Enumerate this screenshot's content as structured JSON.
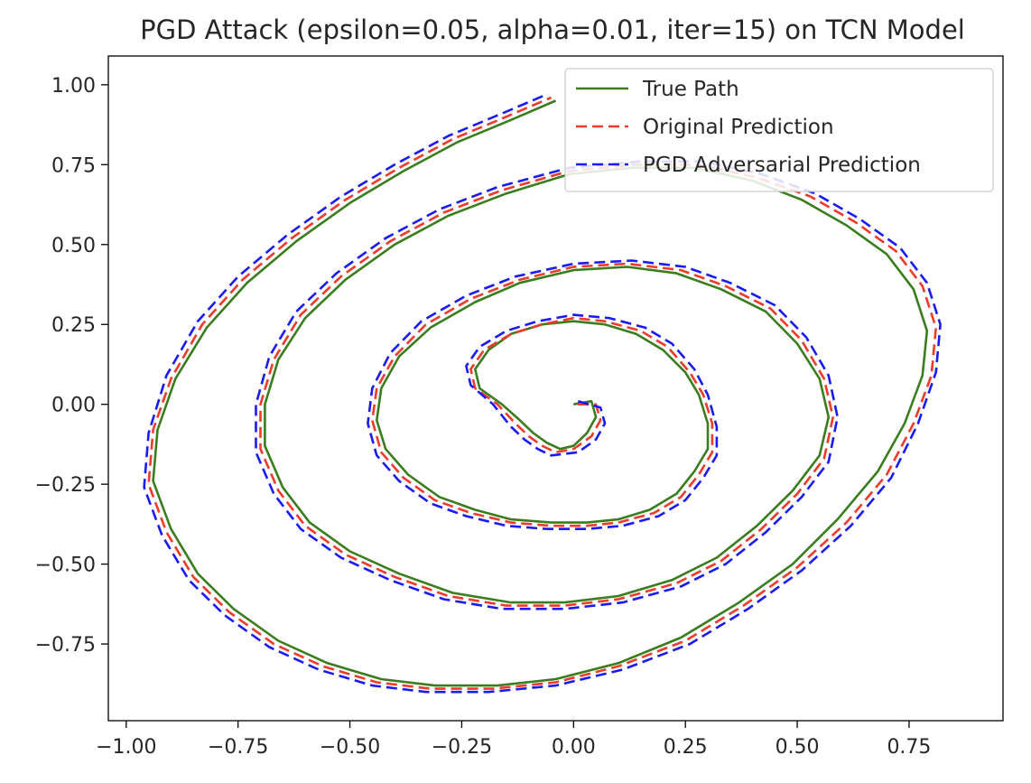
{
  "chart_data": {
    "type": "line",
    "title": "PGD Attack (epsilon=0.05, alpha=0.01, iter=15) on TCN Model",
    "xlabel": "",
    "ylabel": "",
    "xlim": [
      -1.04,
      0.96
    ],
    "ylim": [
      -0.99,
      1.09
    ],
    "x_ticks": [
      -1.0,
      -0.75,
      -0.5,
      -0.25,
      0.0,
      0.25,
      0.5,
      0.75
    ],
    "x_tick_labels": [
      "−1.00",
      "−0.75",
      "−0.50",
      "−0.25",
      "0.00",
      "0.25",
      "0.50",
      "0.75"
    ],
    "y_ticks": [
      1.0,
      0.75,
      0.5,
      0.25,
      0.0,
      -0.25,
      -0.5,
      -0.75
    ],
    "y_tick_labels": [
      "1.00",
      "0.75",
      "0.50",
      "0.25",
      "0.00",
      "−0.25",
      "−0.50",
      "−0.75"
    ],
    "grid": false,
    "legend_position": "top-right",
    "series": [
      {
        "name": "True Path",
        "color": "#3a7d1f",
        "style": "solid",
        "x": [
          0.0,
          0.04,
          0.05,
          0.03,
          0.0,
          -0.03,
          -0.06,
          -0.09,
          -0.12,
          -0.16,
          -0.21,
          -0.22,
          -0.19,
          -0.14,
          -0.07,
          0.0,
          0.07,
          0.14,
          0.2,
          0.25,
          0.28,
          0.3,
          0.3,
          0.27,
          0.23,
          0.17,
          0.1,
          0.03,
          -0.05,
          -0.14,
          -0.22,
          -0.3,
          -0.37,
          -0.42,
          -0.44,
          -0.43,
          -0.39,
          -0.32,
          -0.22,
          -0.12,
          0.0,
          0.12,
          0.23,
          0.33,
          0.43,
          0.5,
          0.55,
          0.57,
          0.55,
          0.49,
          0.41,
          0.32,
          0.22,
          0.1,
          -0.02,
          -0.14,
          -0.27,
          -0.39,
          -0.5,
          -0.59,
          -0.65,
          -0.69,
          -0.69,
          -0.66,
          -0.6,
          -0.51,
          -0.4,
          -0.28,
          -0.15,
          -0.01,
          0.13,
          0.27,
          0.4,
          0.51,
          0.61,
          0.7,
          0.76,
          0.79,
          0.78,
          0.74,
          0.68,
          0.59,
          0.49,
          0.37,
          0.24,
          0.1,
          -0.04,
          -0.17,
          -0.31,
          -0.43,
          -0.55,
          -0.66,
          -0.76,
          -0.84,
          -0.9,
          -0.94,
          -0.93,
          -0.89,
          -0.82,
          -0.73,
          -0.62,
          -0.5,
          -0.38,
          -0.26,
          -0.14,
          -0.04
        ],
        "y": [
          0.0,
          0.01,
          -0.04,
          -0.09,
          -0.13,
          -0.14,
          -0.12,
          -0.09,
          -0.05,
          0.0,
          0.05,
          0.11,
          0.17,
          0.22,
          0.25,
          0.26,
          0.25,
          0.22,
          0.17,
          0.1,
          0.03,
          -0.06,
          -0.14,
          -0.21,
          -0.28,
          -0.33,
          -0.36,
          -0.37,
          -0.37,
          -0.36,
          -0.33,
          -0.29,
          -0.22,
          -0.14,
          -0.05,
          0.05,
          0.15,
          0.24,
          0.32,
          0.38,
          0.42,
          0.43,
          0.41,
          0.36,
          0.29,
          0.19,
          0.08,
          -0.04,
          -0.16,
          -0.27,
          -0.38,
          -0.48,
          -0.55,
          -0.6,
          -0.62,
          -0.62,
          -0.59,
          -0.53,
          -0.46,
          -0.37,
          -0.26,
          -0.13,
          0.0,
          0.14,
          0.27,
          0.39,
          0.5,
          0.59,
          0.66,
          0.72,
          0.74,
          0.74,
          0.7,
          0.64,
          0.56,
          0.47,
          0.36,
          0.23,
          0.09,
          -0.06,
          -0.21,
          -0.36,
          -0.5,
          -0.62,
          -0.73,
          -0.81,
          -0.86,
          -0.88,
          -0.88,
          -0.86,
          -0.81,
          -0.74,
          -0.64,
          -0.53,
          -0.39,
          -0.24,
          -0.08,
          0.08,
          0.24,
          0.38,
          0.51,
          0.63,
          0.73,
          0.82,
          0.89,
          0.95
        ]
      },
      {
        "name": "Original Prediction",
        "color": "#f03a2c",
        "style": "dashed",
        "x": [
          0.01,
          0.05,
          0.06,
          0.04,
          0.0,
          -0.04,
          -0.07,
          -0.1,
          -0.13,
          -0.17,
          -0.22,
          -0.23,
          -0.2,
          -0.14,
          -0.07,
          0.0,
          0.07,
          0.15,
          0.21,
          0.26,
          0.29,
          0.31,
          0.31,
          0.28,
          0.24,
          0.18,
          0.1,
          0.03,
          -0.05,
          -0.14,
          -0.23,
          -0.31,
          -0.38,
          -0.43,
          -0.45,
          -0.44,
          -0.4,
          -0.33,
          -0.23,
          -0.12,
          0.0,
          0.12,
          0.24,
          0.34,
          0.44,
          0.51,
          0.56,
          0.58,
          0.56,
          0.5,
          0.42,
          0.33,
          0.23,
          0.1,
          -0.02,
          -0.15,
          -0.28,
          -0.4,
          -0.51,
          -0.6,
          -0.66,
          -0.7,
          -0.7,
          -0.67,
          -0.61,
          -0.52,
          -0.41,
          -0.29,
          -0.16,
          -0.01,
          0.14,
          0.28,
          0.41,
          0.53,
          0.63,
          0.72,
          0.78,
          0.81,
          0.8,
          0.76,
          0.7,
          0.61,
          0.5,
          0.38,
          0.25,
          0.1,
          -0.04,
          -0.18,
          -0.32,
          -0.44,
          -0.56,
          -0.67,
          -0.77,
          -0.85,
          -0.91,
          -0.95,
          -0.94,
          -0.9,
          -0.83,
          -0.74,
          -0.63,
          -0.51,
          -0.39,
          -0.27,
          -0.15,
          -0.05
        ],
        "y": [
          0.0,
          0.0,
          -0.05,
          -0.1,
          -0.14,
          -0.15,
          -0.13,
          -0.1,
          -0.06,
          0.0,
          0.05,
          0.11,
          0.17,
          0.22,
          0.25,
          0.27,
          0.26,
          0.23,
          0.18,
          0.1,
          0.03,
          -0.06,
          -0.15,
          -0.22,
          -0.29,
          -0.34,
          -0.37,
          -0.38,
          -0.38,
          -0.37,
          -0.34,
          -0.3,
          -0.23,
          -0.15,
          -0.05,
          0.05,
          0.15,
          0.25,
          0.33,
          0.39,
          0.43,
          0.44,
          0.42,
          0.37,
          0.3,
          0.2,
          0.08,
          -0.04,
          -0.17,
          -0.28,
          -0.39,
          -0.49,
          -0.56,
          -0.61,
          -0.63,
          -0.63,
          -0.6,
          -0.54,
          -0.47,
          -0.38,
          -0.27,
          -0.14,
          0.0,
          0.14,
          0.28,
          0.4,
          0.51,
          0.6,
          0.67,
          0.73,
          0.75,
          0.75,
          0.71,
          0.65,
          0.57,
          0.48,
          0.37,
          0.24,
          0.09,
          -0.06,
          -0.22,
          -0.37,
          -0.51,
          -0.63,
          -0.74,
          -0.82,
          -0.87,
          -0.89,
          -0.89,
          -0.87,
          -0.82,
          -0.75,
          -0.65,
          -0.54,
          -0.4,
          -0.25,
          -0.08,
          0.08,
          0.25,
          0.39,
          0.52,
          0.64,
          0.74,
          0.83,
          0.9,
          0.96
        ]
      },
      {
        "name": "PGD Adversarial Prediction",
        "color": "#1a1af5",
        "style": "dashed",
        "x": [
          0.01,
          0.06,
          0.07,
          0.05,
          0.01,
          -0.05,
          -0.08,
          -0.11,
          -0.14,
          -0.18,
          -0.23,
          -0.24,
          -0.21,
          -0.15,
          -0.08,
          0.0,
          0.08,
          0.16,
          0.22,
          0.27,
          0.3,
          0.32,
          0.32,
          0.29,
          0.25,
          0.19,
          0.11,
          0.03,
          -0.06,
          -0.15,
          -0.24,
          -0.32,
          -0.39,
          -0.44,
          -0.46,
          -0.45,
          -0.41,
          -0.34,
          -0.24,
          -0.13,
          0.0,
          0.13,
          0.25,
          0.35,
          0.45,
          0.52,
          0.57,
          0.59,
          0.57,
          0.51,
          0.43,
          0.34,
          0.24,
          0.11,
          -0.02,
          -0.16,
          -0.29,
          -0.41,
          -0.52,
          -0.61,
          -0.67,
          -0.71,
          -0.71,
          -0.68,
          -0.62,
          -0.53,
          -0.42,
          -0.3,
          -0.17,
          -0.01,
          0.15,
          0.29,
          0.42,
          0.54,
          0.64,
          0.73,
          0.79,
          0.82,
          0.81,
          0.77,
          0.71,
          0.62,
          0.51,
          0.39,
          0.26,
          0.11,
          -0.04,
          -0.19,
          -0.33,
          -0.45,
          -0.57,
          -0.68,
          -0.78,
          -0.86,
          -0.92,
          -0.96,
          -0.95,
          -0.91,
          -0.84,
          -0.75,
          -0.64,
          -0.52,
          -0.4,
          -0.28,
          -0.16,
          -0.06
        ],
        "y": [
          0.01,
          -0.01,
          -0.06,
          -0.11,
          -0.15,
          -0.16,
          -0.14,
          -0.11,
          -0.07,
          0.0,
          0.06,
          0.12,
          0.18,
          0.23,
          0.26,
          0.28,
          0.27,
          0.24,
          0.19,
          0.11,
          0.03,
          -0.07,
          -0.16,
          -0.23,
          -0.3,
          -0.35,
          -0.38,
          -0.39,
          -0.39,
          -0.38,
          -0.35,
          -0.31,
          -0.24,
          -0.16,
          -0.06,
          0.05,
          0.16,
          0.26,
          0.34,
          0.4,
          0.44,
          0.45,
          0.43,
          0.38,
          0.31,
          0.21,
          0.09,
          -0.04,
          -0.18,
          -0.29,
          -0.4,
          -0.5,
          -0.57,
          -0.62,
          -0.64,
          -0.64,
          -0.61,
          -0.55,
          -0.48,
          -0.39,
          -0.28,
          -0.15,
          0.0,
          0.15,
          0.29,
          0.41,
          0.52,
          0.61,
          0.68,
          0.74,
          0.76,
          0.76,
          0.72,
          0.66,
          0.58,
          0.49,
          0.38,
          0.25,
          0.1,
          -0.06,
          -0.23,
          -0.38,
          -0.52,
          -0.64,
          -0.75,
          -0.83,
          -0.88,
          -0.9,
          -0.9,
          -0.88,
          -0.83,
          -0.76,
          -0.66,
          -0.55,
          -0.41,
          -0.26,
          -0.09,
          0.09,
          0.26,
          0.4,
          0.53,
          0.65,
          0.75,
          0.84,
          0.91,
          0.97
        ]
      }
    ]
  }
}
